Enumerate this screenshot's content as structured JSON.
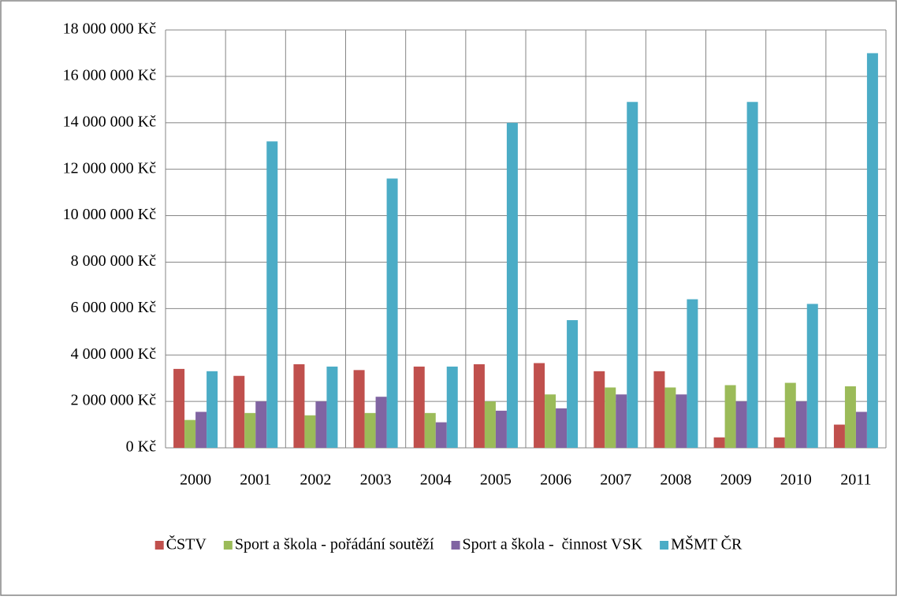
{
  "chart_data": {
    "type": "bar",
    "categories": [
      "2000",
      "2001",
      "2002",
      "2003",
      "2004",
      "2005",
      "2006",
      "2007",
      "2008",
      "2009",
      "2010",
      "2011"
    ],
    "series": [
      {
        "name": "ČSTV",
        "color": "#c0504d",
        "values": [
          3400000,
          3100000,
          3600000,
          3350000,
          3500000,
          3600000,
          3650000,
          3300000,
          3300000,
          450000,
          450000,
          1000000
        ]
      },
      {
        "name": "Sport a škola - pořádání soutěží",
        "color": "#9bbb59",
        "values": [
          1200000,
          1500000,
          1400000,
          1500000,
          1500000,
          2000000,
          2300000,
          2600000,
          2600000,
          2700000,
          2800000,
          2650000
        ]
      },
      {
        "name": "Sport a škola -  činnost VSK",
        "color": "#8064a2",
        "values": [
          1550000,
          2000000,
          2000000,
          2200000,
          1100000,
          1600000,
          1700000,
          2300000,
          2300000,
          2000000,
          2000000,
          1550000
        ]
      },
      {
        "name": "MŠMT ČR",
        "color": "#4bacc6",
        "values": [
          3300000,
          13200000,
          3500000,
          11600000,
          3500000,
          14000000,
          5500000,
          14900000,
          6400000,
          14900000,
          6200000,
          17000000
        ]
      }
    ],
    "ylim": [
      0,
      18000000
    ],
    "yticks": [
      {
        "value": 0,
        "label": "0 Kč"
      },
      {
        "value": 2000000,
        "label": "2 000 000 Kč"
      },
      {
        "value": 4000000,
        "label": "4 000 000 Kč"
      },
      {
        "value": 6000000,
        "label": "6 000 000 Kč"
      },
      {
        "value": 8000000,
        "label": "8 000 000 Kč"
      },
      {
        "value": 10000000,
        "label": "10 000 000 Kč"
      },
      {
        "value": 12000000,
        "label": "12 000 000 Kč"
      },
      {
        "value": 14000000,
        "label": "14 000 000 Kč"
      },
      {
        "value": 16000000,
        "label": "16 000 000 Kč"
      },
      {
        "value": 18000000,
        "label": "18 000 000 Kč"
      }
    ],
    "grid": true,
    "legend": "bottom"
  }
}
